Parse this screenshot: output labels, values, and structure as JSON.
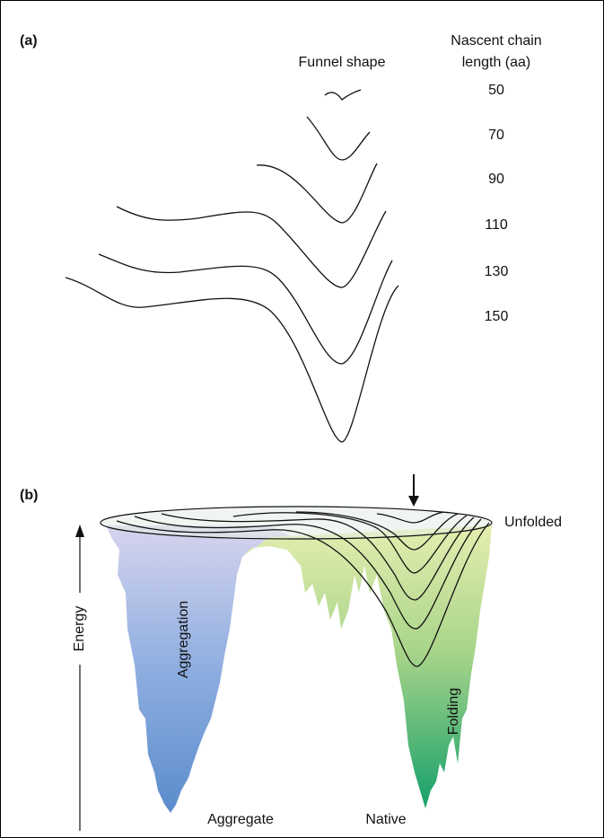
{
  "panel_a": {
    "label": "(a)",
    "funnel_header": "Funnel shape",
    "length_header": [
      "Nascent chain",
      "length (aa)"
    ],
    "lengths": [
      50,
      70,
      90,
      110,
      130,
      150
    ]
  },
  "panel_b": {
    "label": "(b)",
    "energy": "Energy",
    "aggregation": "Aggregation",
    "folding": "Folding",
    "aggregate": "Aggregate",
    "native": "Native",
    "unfolded": "Unfolded"
  }
}
